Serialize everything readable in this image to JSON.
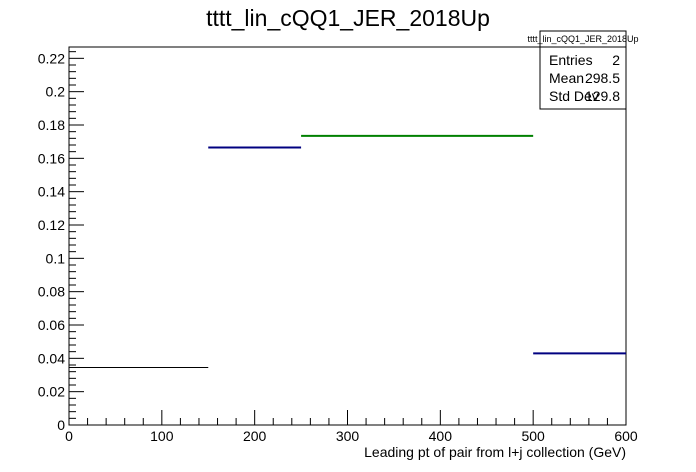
{
  "chart_data": {
    "type": "histogram",
    "title": "tttt_lin_cQQ1_JER_2018Up",
    "xlabel": "Leading pt of pair from l+j collection (GeV)",
    "ylabel": "",
    "xlim": [
      0,
      600
    ],
    "ylim": [
      0,
      0.2268
    ],
    "xticks": [
      "0",
      "100",
      "200",
      "300",
      "400",
      "500",
      "600"
    ],
    "yticks": [
      "0",
      "0.02",
      "0.04",
      "0.06",
      "0.08",
      "0.1",
      "0.12",
      "0.14",
      "0.16",
      "0.18",
      "0.2",
      "0.22"
    ],
    "bins": [
      {
        "x0": 0,
        "x1": 150,
        "value": 0.0345,
        "color": "#000000"
      },
      {
        "x0": 150,
        "x1": 250,
        "value": 0.1665,
        "color": "#000080"
      },
      {
        "x0": 250,
        "x1": 500,
        "value": 0.1735,
        "color": "#008000"
      },
      {
        "x0": 500,
        "x1": 600,
        "value": 0.043,
        "color": "#000080"
      }
    ],
    "stats": {
      "title": "tttt_lin_cQQ1_JER_2018Up",
      "rows": [
        {
          "label": "Entries",
          "value": "2"
        },
        {
          "label": "Mean",
          "value": "298.5"
        },
        {
          "label": "Std Dev",
          "value": "129.8"
        }
      ]
    }
  }
}
